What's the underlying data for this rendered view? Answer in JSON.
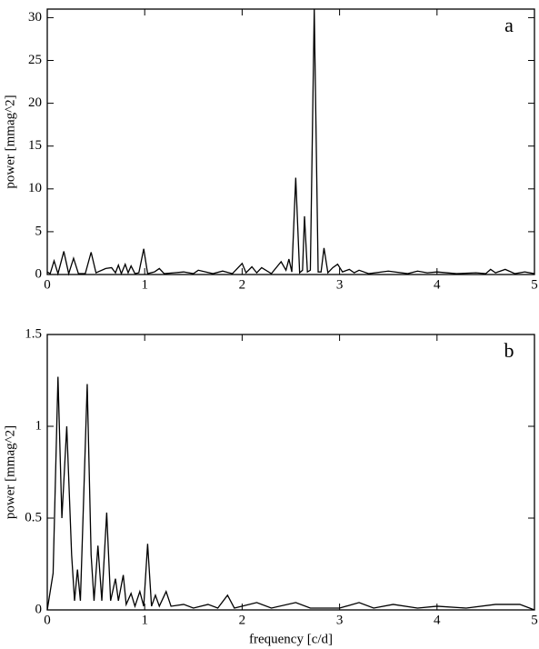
{
  "chart_data": [
    {
      "type": "line",
      "annotation": "a",
      "y_label": "power [mmag^2]",
      "x": [
        0,
        0.03,
        0.07,
        0.11,
        0.17,
        0.22,
        0.27,
        0.32,
        0.39,
        0.45,
        0.5,
        0.6,
        0.66,
        0.7,
        0.73,
        0.76,
        0.8,
        0.83,
        0.86,
        0.9,
        0.94,
        0.99,
        1.03,
        1.1,
        1.15,
        1.2,
        1.3,
        1.4,
        1.5,
        1.55,
        1.7,
        1.8,
        1.9,
        2.0,
        2.04,
        2.1,
        2.15,
        2.2,
        2.3,
        2.4,
        2.45,
        2.48,
        2.51,
        2.55,
        2.59,
        2.62,
        2.64,
        2.67,
        2.7,
        2.74,
        2.78,
        2.81,
        2.84,
        2.88,
        2.93,
        2.98,
        3.03,
        3.1,
        3.15,
        3.2,
        3.3,
        3.5,
        3.7,
        3.8,
        3.9,
        4.0,
        4.2,
        4.4,
        4.5,
        4.55,
        4.6,
        4.7,
        4.8,
        4.9,
        5
      ],
      "values": [
        0.3,
        0.1,
        1.6,
        0.1,
        2.7,
        0.1,
        1.9,
        0.1,
        0.1,
        2.6,
        0.2,
        0.7,
        0.8,
        0.2,
        1.1,
        0.1,
        1.2,
        0.2,
        1.0,
        0.1,
        0.2,
        3.0,
        0.1,
        0.3,
        0.7,
        0.1,
        0.2,
        0.3,
        0.1,
        0.5,
        0.1,
        0.4,
        0.1,
        1.3,
        0.2,
        0.9,
        0.2,
        0.8,
        0.1,
        1.5,
        0.5,
        1.8,
        0.3,
        11.3,
        0.2,
        0.5,
        6.8,
        0.3,
        0.5,
        31,
        0.3,
        0.3,
        3.1,
        0.2,
        0.8,
        1.2,
        0.3,
        0.6,
        0.2,
        0.5,
        0.1,
        0.4,
        0.1,
        0.4,
        0.2,
        0.3,
        0.1,
        0.2,
        0.1,
        0.6,
        0.2,
        0.6,
        0.1,
        0.3,
        0.1
      ],
      "color": "#000000",
      "xlim": [
        0,
        5
      ],
      "xticks": [
        0,
        1,
        2,
        3,
        4,
        5
      ],
      "ylim": [
        0,
        31
      ],
      "yticks": [
        0,
        5,
        10,
        15,
        20,
        25,
        30
      ]
    },
    {
      "type": "line",
      "annotation": "b",
      "y_label": "power [mmag^2]",
      "x_label": "frequency [c/d]",
      "x": [
        0,
        0.06,
        0.11,
        0.15,
        0.2,
        0.25,
        0.28,
        0.31,
        0.34,
        0.37,
        0.41,
        0.45,
        0.48,
        0.52,
        0.56,
        0.61,
        0.65,
        0.7,
        0.73,
        0.78,
        0.81,
        0.86,
        0.9,
        0.95,
        0.99,
        1.03,
        1.07,
        1.11,
        1.15,
        1.22,
        1.27,
        1.4,
        1.5,
        1.65,
        1.75,
        1.85,
        1.92,
        2.15,
        2.3,
        2.55,
        2.7,
        3.0,
        3.2,
        3.35,
        3.55,
        3.8,
        4.0,
        4.3,
        4.6,
        4.85,
        5
      ],
      "values": [
        0,
        0.2,
        1.27,
        0.5,
        1.0,
        0.3,
        0.05,
        0.22,
        0.05,
        0.55,
        1.23,
        0.3,
        0.05,
        0.35,
        0.05,
        0.53,
        0.05,
        0.17,
        0.05,
        0.19,
        0.03,
        0.09,
        0.02,
        0.1,
        0.02,
        0.36,
        0.02,
        0.08,
        0.02,
        0.1,
        0.02,
        0.03,
        0.01,
        0.03,
        0.01,
        0.08,
        0.01,
        0.04,
        0.01,
        0.04,
        0.01,
        0.01,
        0.04,
        0.01,
        0.03,
        0.01,
        0.02,
        0.01,
        0.03,
        0.03,
        0
      ],
      "color": "#000000",
      "xlim": [
        0,
        5
      ],
      "xticks": [
        0,
        1,
        2,
        3,
        4,
        5
      ],
      "ylim": [
        0,
        1.5
      ],
      "yticks": [
        0,
        0.5,
        1,
        1.5
      ]
    }
  ]
}
